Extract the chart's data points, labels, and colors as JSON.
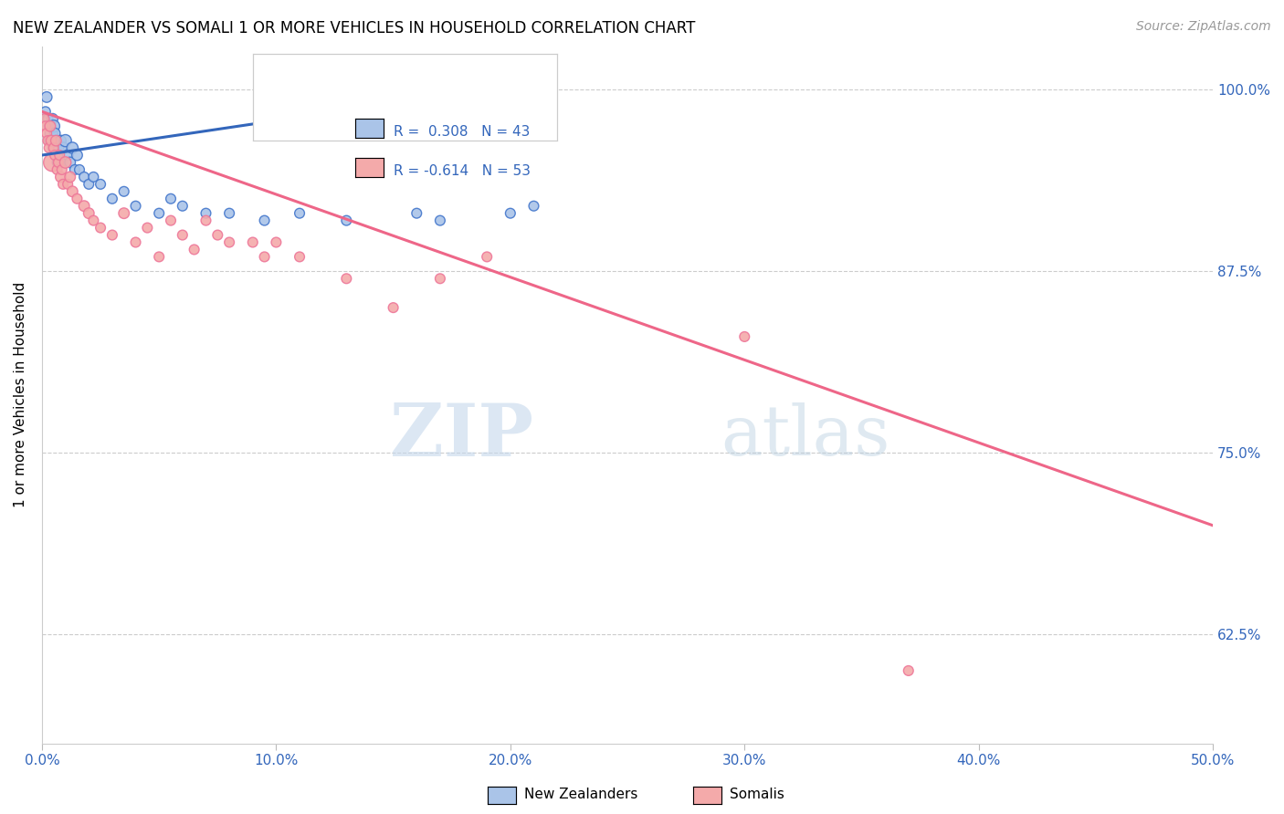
{
  "title": "NEW ZEALANDER VS SOMALI 1 OR MORE VEHICLES IN HOUSEHOLD CORRELATION CHART",
  "source": "Source: ZipAtlas.com",
  "ylabel": "1 or more Vehicles in Household",
  "legend_label1": "New Zealanders",
  "legend_label2": "Somalis",
  "R1": 0.308,
  "N1": 43,
  "R2": -0.614,
  "N2": 53,
  "x_min": 0.0,
  "x_max": 50.0,
  "y_min": 55.0,
  "y_max": 103.0,
  "color_blue_fill": "#aac4e8",
  "color_blue_edge": "#4477cc",
  "color_pink_fill": "#f4aaaa",
  "color_pink_edge": "#ee7799",
  "color_line_blue": "#3366BB",
  "color_line_pink": "#ee6688",
  "color_tick": "#3366BB",
  "grid_color": "#cccccc",
  "nz_x": [
    0.15,
    0.2,
    0.25,
    0.3,
    0.35,
    0.4,
    0.45,
    0.5,
    0.5,
    0.55,
    0.6,
    0.65,
    0.7,
    0.75,
    0.8,
    0.85,
    0.9,
    1.0,
    1.1,
    1.2,
    1.3,
    1.4,
    1.5,
    1.6,
    1.8,
    2.0,
    2.2,
    2.5,
    3.0,
    3.5,
    4.0,
    5.0,
    5.5,
    6.0,
    7.0,
    8.0,
    9.5,
    11.0,
    13.0,
    16.0,
    17.0,
    20.0,
    21.0
  ],
  "nz_y": [
    98.5,
    99.5,
    98.0,
    97.5,
    96.5,
    97.0,
    98.0,
    97.5,
    96.0,
    97.0,
    96.5,
    95.0,
    96.0,
    95.5,
    96.5,
    95.0,
    96.0,
    96.5,
    95.5,
    95.0,
    96.0,
    94.5,
    95.5,
    94.5,
    94.0,
    93.5,
    94.0,
    93.5,
    92.5,
    93.0,
    92.0,
    91.5,
    92.5,
    92.0,
    91.5,
    91.5,
    91.0,
    91.5,
    91.0,
    91.5,
    91.0,
    91.5,
    92.0
  ],
  "nz_sizes": [
    60,
    70,
    60,
    60,
    80,
    100,
    70,
    90,
    80,
    70,
    60,
    60,
    70,
    60,
    70,
    60,
    80,
    90,
    70,
    70,
    80,
    60,
    70,
    60,
    60,
    60,
    60,
    60,
    60,
    60,
    60,
    60,
    60,
    60,
    60,
    60,
    60,
    60,
    60,
    60,
    60,
    60,
    60
  ],
  "som_x": [
    0.1,
    0.15,
    0.2,
    0.25,
    0.3,
    0.35,
    0.4,
    0.45,
    0.5,
    0.55,
    0.6,
    0.65,
    0.7,
    0.75,
    0.8,
    0.85,
    0.9,
    1.0,
    1.1,
    1.2,
    1.3,
    1.5,
    1.8,
    2.0,
    2.2,
    2.5,
    3.0,
    3.5,
    4.0,
    4.5,
    5.0,
    5.5,
    6.0,
    6.5,
    7.0,
    7.5,
    8.0,
    9.0,
    9.5,
    10.0,
    11.0,
    13.0,
    15.0,
    17.0,
    19.0,
    30.0,
    37.0
  ],
  "som_y": [
    98.0,
    97.5,
    97.0,
    96.5,
    96.0,
    97.5,
    96.5,
    95.0,
    96.0,
    95.5,
    96.5,
    94.5,
    95.0,
    95.5,
    94.0,
    94.5,
    93.5,
    95.0,
    93.5,
    94.0,
    93.0,
    92.5,
    92.0,
    91.5,
    91.0,
    90.5,
    90.0,
    91.5,
    89.5,
    90.5,
    88.5,
    91.0,
    90.0,
    89.0,
    91.0,
    90.0,
    89.5,
    89.5,
    88.5,
    89.5,
    88.5,
    87.0,
    85.0,
    87.0,
    88.5,
    83.0,
    60.0
  ],
  "som_sizes": [
    60,
    60,
    60,
    60,
    60,
    70,
    70,
    200,
    60,
    60,
    70,
    60,
    60,
    60,
    70,
    60,
    60,
    80,
    60,
    70,
    70,
    60,
    70,
    70,
    60,
    60,
    60,
    70,
    60,
    60,
    60,
    60,
    60,
    60,
    60,
    60,
    60,
    60,
    60,
    60,
    60,
    60,
    60,
    60,
    60,
    60,
    60
  ],
  "nz_line_x": [
    0.0,
    21.0
  ],
  "nz_line_y": [
    95.5,
    100.5
  ],
  "som_line_x": [
    0.0,
    50.0
  ],
  "som_line_y": [
    98.5,
    70.0
  ],
  "y_tick_vals": [
    62.5,
    75.0,
    87.5,
    100.0
  ],
  "x_tick_vals": [
    0,
    10,
    20,
    30,
    40,
    50
  ]
}
